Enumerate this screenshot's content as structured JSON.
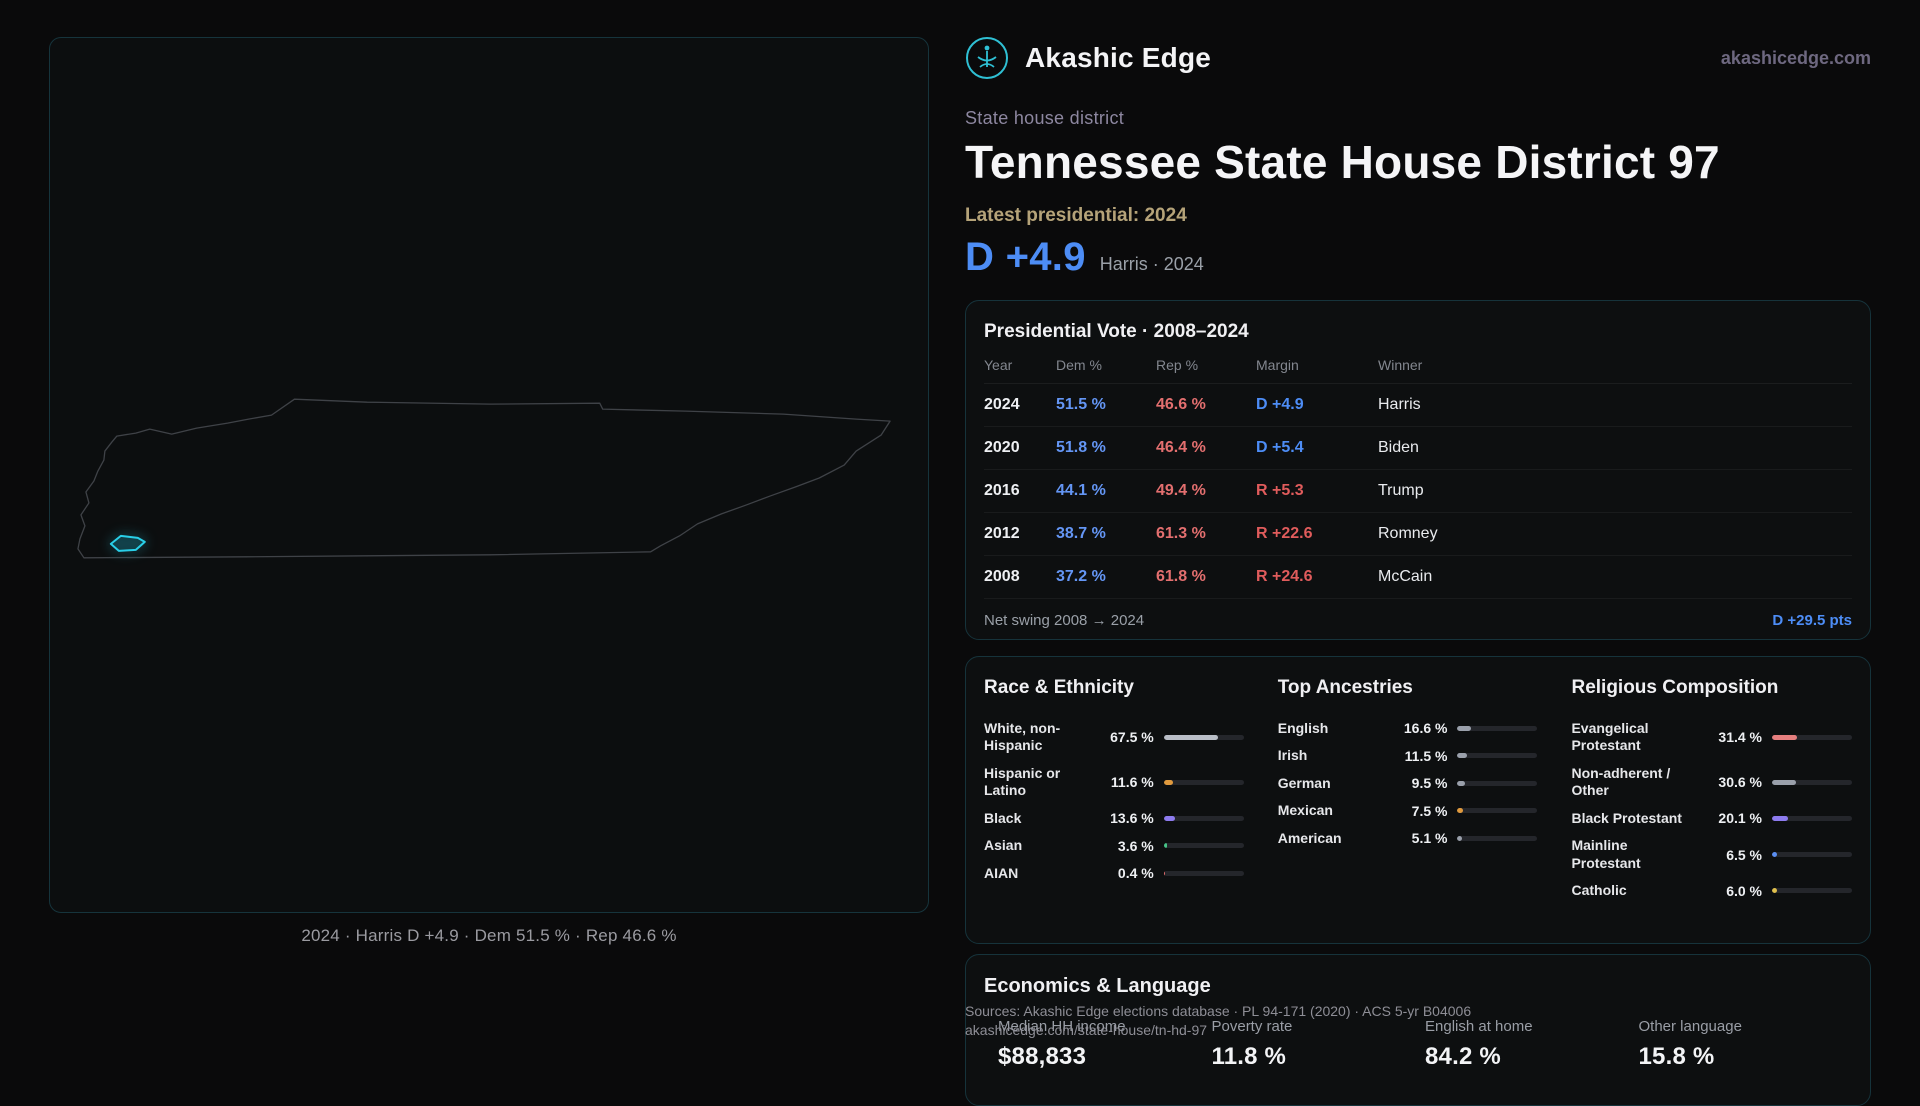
{
  "brand": {
    "name": "Akashic Edge",
    "domain": "akashicedge.com"
  },
  "header": {
    "kicker": "State house district",
    "title": "Tennessee State House District 97",
    "latest_label": "Latest presidential: 2024",
    "headline_margin": "D +4.9",
    "headline_context": "Harris · 2024"
  },
  "map": {
    "caption": "2024 · Harris D +4.9 · Dem 51.5 % · Rep 46.6 %"
  },
  "presidential_table": {
    "title": "Presidential Vote · 2008–2024",
    "columns": {
      "year": "Year",
      "dem": "Dem %",
      "rep": "Rep %",
      "margin": "Margin",
      "winner": "Winner"
    },
    "rows": [
      {
        "year": "2024",
        "dem": "51.5 %",
        "rep": "46.6 %",
        "margin": "D +4.9",
        "winner": "Harris"
      },
      {
        "year": "2020",
        "dem": "51.8 %",
        "rep": "46.4 %",
        "margin": "D +5.4",
        "winner": "Biden"
      },
      {
        "year": "2016",
        "dem": "44.1 %",
        "rep": "49.4 %",
        "margin": "R +5.3",
        "winner": "Trump"
      },
      {
        "year": "2012",
        "dem": "38.7 %",
        "rep": "61.3 %",
        "margin": "R +22.6",
        "winner": "Romney"
      },
      {
        "year": "2008",
        "dem": "37.2 %",
        "rep": "61.8 %",
        "margin": "R +24.6",
        "winner": "McCain"
      }
    ],
    "footer_label": "Net swing 2008 → 2024",
    "footer_value": "D +29.5 pts"
  },
  "demographics": {
    "race": {
      "title": "Race & Ethnicity",
      "rows": [
        {
          "label": "White, non-Hispanic",
          "value": "67.5 %",
          "pct": 67.5,
          "color": "#b9bec7"
        },
        {
          "label": "Hispanic or Latino",
          "value": "11.6 %",
          "pct": 11.6,
          "color": "#e09a3e"
        },
        {
          "label": "Black",
          "value": "13.6 %",
          "pct": 13.6,
          "color": "#8d7bef"
        },
        {
          "label": "Asian",
          "value": "3.6 %",
          "pct": 3.6,
          "color": "#46c487"
        },
        {
          "label": "AIAN",
          "value": "0.4 %",
          "pct": 0.4,
          "color": "#e06c6c"
        }
      ]
    },
    "ancestries": {
      "title": "Top Ancestries",
      "rows": [
        {
          "label": "English",
          "value": "16.6 %",
          "pct": 16.6,
          "color": "#9aa0ab"
        },
        {
          "label": "Irish",
          "value": "11.5 %",
          "pct": 11.5,
          "color": "#9aa0ab"
        },
        {
          "label": "German",
          "value": "9.5 %",
          "pct": 9.5,
          "color": "#9aa0ab"
        },
        {
          "label": "Mexican",
          "value": "7.5 %",
          "pct": 7.5,
          "color": "#e09a3e"
        },
        {
          "label": "American",
          "value": "5.1 %",
          "pct": 5.1,
          "color": "#9aa0ab"
        }
      ]
    },
    "religion": {
      "title": "Religious Composition",
      "rows": [
        {
          "label": "Evangelical Protestant",
          "value": "31.4 %",
          "pct": 31.4,
          "color": "#e57e7e"
        },
        {
          "label": "Non-adherent / Other",
          "value": "30.6 %",
          "pct": 30.6,
          "color": "#9aa0ab"
        },
        {
          "label": "Black Protestant",
          "value": "20.1 %",
          "pct": 20.1,
          "color": "#8d7bef"
        },
        {
          "label": "Mainline Protestant",
          "value": "6.5 %",
          "pct": 6.5,
          "color": "#5b8ff2"
        },
        {
          "label": "Catholic",
          "value": "6.0 %",
          "pct": 6.0,
          "color": "#e0c04d"
        }
      ]
    }
  },
  "economics": {
    "title": "Economics & Language",
    "stats": [
      {
        "label": "Median HH income",
        "value": "$88,833"
      },
      {
        "label": "Poverty rate",
        "value": "11.8 %"
      },
      {
        "label": "English at home",
        "value": "84.2 %"
      },
      {
        "label": "Other language",
        "value": "15.8 %"
      }
    ]
  },
  "footer": {
    "line1": "Sources: Akashic Edge elections database · PL 94-171 (2020) · ACS 5-yr B04006",
    "line2": "akashicedge.com/state-house/tn-hd-97"
  }
}
